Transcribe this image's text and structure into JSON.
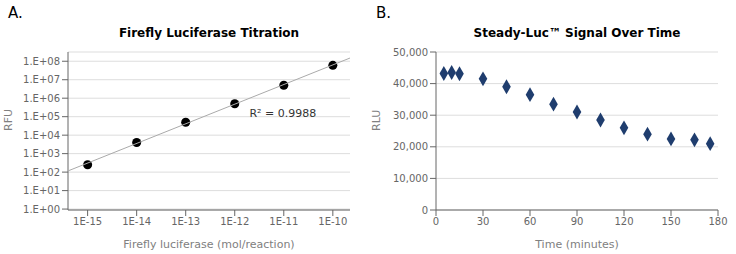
{
  "chart_data": [
    {
      "type": "scatter",
      "panel_label": "A.",
      "title": "Firefly Luciferase Titration",
      "x_label": "Firefly luciferase (mol/reaction)",
      "y_label": "RFU",
      "log": true,
      "grid": "y",
      "series": [
        {
          "type": "scatter",
          "color": "black",
          "marker": "circle",
          "x": [
            1e-15,
            1e-14,
            1e-13,
            1e-12,
            1e-11,
            1e-10
          ],
          "values": [
            250,
            4000,
            50000,
            500000,
            5000000,
            60000000
          ]
        },
        {
          "type": "line",
          "color": "#aaaaaa",
          "x": [
            3.981071705534973e-16,
            2.2387211385683395e-10
          ],
          "values": [
            115.94,
            149390000
          ]
        }
      ],
      "annotations": [
        {
          "text": "R² = 0.9988",
          "x": 1.5e-12,
          "y": 150000
        }
      ],
      "xlim": [
        3.981071705534973e-16,
        2.2387211385683395e-10
      ],
      "ylim": [
        0.8912509381337456,
        316227766.01683795
      ],
      "xticks": [
        {
          "value": 1e-15,
          "label": "1E-15"
        },
        {
          "value": 1e-14,
          "label": "1E-14"
        },
        {
          "value": 1e-13,
          "label": "1E-13"
        },
        {
          "value": 1e-12,
          "label": "1E-12"
        },
        {
          "value": 1e-11,
          "label": "1E-11"
        },
        {
          "value": 1e-10,
          "label": "1E-10"
        }
      ],
      "yticks": [
        {
          "value": 1,
          "label": "1.E+00"
        },
        {
          "value": 10,
          "label": "1.E+01"
        },
        {
          "value": 100,
          "label": "1.E+02"
        },
        {
          "value": 1000,
          "label": "1.E+03"
        },
        {
          "value": 10000,
          "label": "1.E+04"
        },
        {
          "value": 100000,
          "label": "1.E+05"
        },
        {
          "value": 1000000,
          "label": "1.E+06"
        },
        {
          "value": 10000000,
          "label": "1.E+07"
        },
        {
          "value": 100000000,
          "label": "1.E+08"
        }
      ]
    },
    {
      "type": "scatter",
      "panel_label": "B.",
      "title": "Steady-Luc™ Signal Over Time",
      "x_label": "Time (minutes)",
      "y_label": "RLU",
      "grid": "y",
      "series": [
        {
          "type": "scatter",
          "color": "#1f3d6e",
          "marker": "diamond",
          "x": [
            5,
            10,
            15,
            30,
            45,
            60,
            75,
            90,
            105,
            120,
            135,
            150,
            165,
            175
          ],
          "values": [
            43200,
            43500,
            43100,
            41500,
            39000,
            36500,
            33500,
            31000,
            28500,
            26000,
            24000,
            22500,
            22200,
            21000
          ]
        }
      ],
      "xlim": [
        0,
        180
      ],
      "ylim": [
        0,
        50000
      ],
      "xticks": [
        0,
        30,
        60,
        90,
        120,
        150,
        180
      ],
      "yticks": [
        0,
        {
          "value": 10000,
          "label": "10,000"
        },
        {
          "value": 20000,
          "label": "20,000"
        },
        {
          "value": 30000,
          "label": "30,000"
        },
        {
          "value": 40000,
          "label": "40,000"
        },
        {
          "value": 50000,
          "label": "50,000"
        }
      ]
    }
  ]
}
